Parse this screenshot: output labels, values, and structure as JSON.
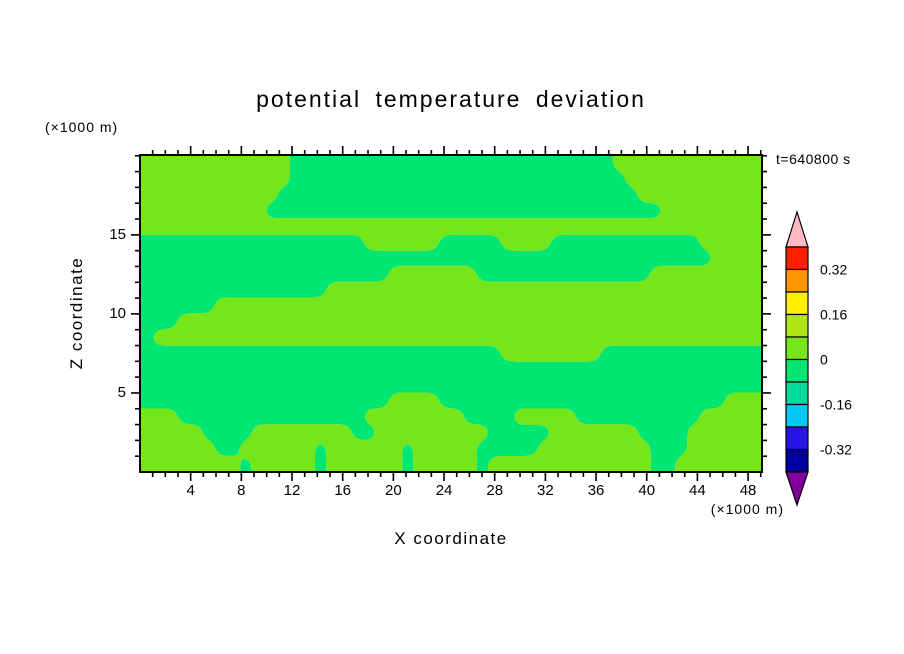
{
  "title": "potential temperature deviation",
  "time_label": "t=640800 s",
  "x_axis": {
    "label": "X coordinate",
    "unit": "(×1000 m)",
    "major_ticks": [
      4,
      8,
      12,
      16,
      20,
      24,
      28,
      32,
      36,
      40,
      44,
      48
    ],
    "minor_tick_step": 1,
    "range": [
      0,
      49.1
    ]
  },
  "z_axis": {
    "label": "Z coordinate",
    "unit": "(×1000 m)",
    "major_ticks": [
      5,
      10,
      15
    ],
    "minor_tick_step": 1,
    "range": [
      0,
      20.05
    ]
  },
  "colorbar": {
    "cap_top_color": "#FFB9C3",
    "cap_bottom_color": "#8200A0",
    "boxes_top_to_bottom": [
      {
        "color": "#FF1E00",
        "value_range": [
          0.32,
          0.4
        ],
        "label_below": "0.32"
      },
      {
        "color": "#FF9600",
        "value_range": [
          0.24,
          0.32
        ]
      },
      {
        "color": "#FFF000",
        "value_range": [
          0.16,
          0.24
        ],
        "label_below": "0.16"
      },
      {
        "color": "#AFE617",
        "value_range": [
          0.08,
          0.16
        ]
      },
      {
        "color": "#76E61A",
        "value_range": [
          0,
          0.08
        ],
        "label_below": "0"
      },
      {
        "color": "#00E673",
        "value_range": [
          -0.08,
          0
        ]
      },
      {
        "color": "#00DC9B",
        "value_range": [
          -0.16,
          -0.08
        ],
        "label_below": "-0.16"
      },
      {
        "color": "#00C8F0",
        "value_range": [
          -0.24,
          -0.16
        ]
      },
      {
        "color": "#2814E6",
        "value_range": [
          -0.32,
          -0.24
        ],
        "label_below": "-0.32"
      },
      {
        "color": "#0000A0",
        "value_range": [
          -0.4,
          -0.32
        ]
      }
    ]
  },
  "chart_data": {
    "type": "heatmap",
    "title": "potential temperature deviation",
    "xlabel": "X coordinate (×1000 m)",
    "ylabel": "Z coordinate (×1000 m)",
    "time_annotation": "t=640800 s",
    "x_range": [
      0,
      49.1
    ],
    "z_range": [
      0,
      20.05
    ],
    "contour_interval": 0.08,
    "colorbar_tick_values": [
      0.32,
      0.16,
      0,
      -0.16,
      -0.32
    ],
    "legend_position": "right",
    "colors": {
      "positive": "#76E61A",
      "negative": "#00E673"
    },
    "cell_encoding": {
      "1": "theta deviation in (0, 0.08]",
      "0": "theta deviation in [-0.08, 0)"
    },
    "grid_rows_top_to_bottom": [
      "11111111111100000000000000000000000000111111111111",
      "11111111111100000000000000000000000000011111111111",
      "11111111111000000000000000000000000000001111111111",
      "11111111110000000000000000000000000000000011111111",
      "11111111111111111111111111111111111111111111111111",
      "00000000000000000011111100000111100000000000011111",
      "00000000000000000000000000000000000000000000001111",
      "00000000000000000000111111100000000000000111111111",
      "00000000000000011111111111111111111111111111111111",
      "00000011111111111111111111111111111111111111111111",
      "00011111111111111111111111111111111111111111111111",
      "01111111111111111111111111111111111111111111111111",
      "00000000000000000000000000000111111110000000000000",
      "00000000000000000000000000000000000000000000000000",
      "00000000000000000000000000000000000000000000000000",
      "00000000000000000000111100000000000000000000000111",
      "11100000000000000011111111000011111000000000011111",
      "11111000011111111001111111110000011111110000111111",
      "11111100111111011111101111100000111111111000111111",
      "11111111011111011111101111101111111111111001111111"
    ]
  }
}
